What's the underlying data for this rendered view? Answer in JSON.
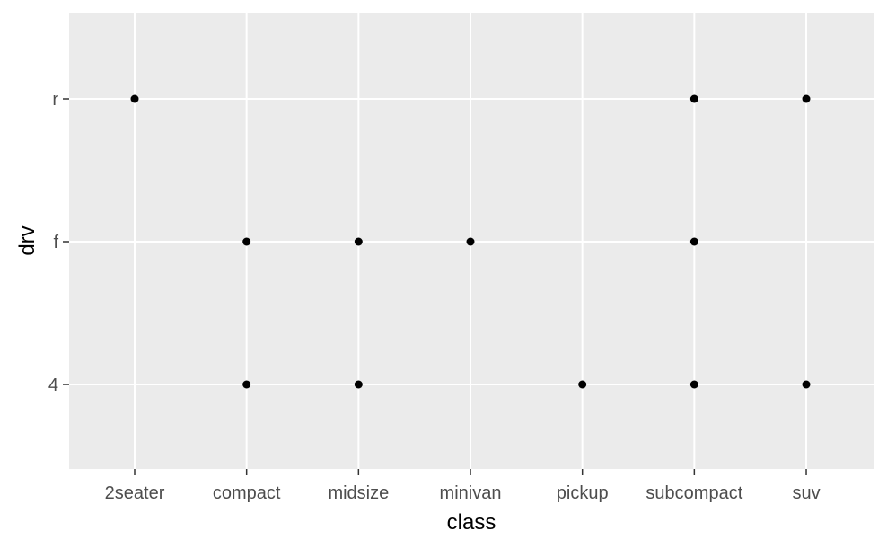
{
  "chart_data": {
    "type": "scatter",
    "title": "",
    "xlabel": "class",
    "ylabel": "drv",
    "x_categories": [
      "2seater",
      "compact",
      "midsize",
      "minivan",
      "pickup",
      "subcompact",
      "suv"
    ],
    "y_categories": [
      "4",
      "f",
      "r"
    ],
    "points": [
      {
        "x": "2seater",
        "y": "r"
      },
      {
        "x": "compact",
        "y": "f"
      },
      {
        "x": "compact",
        "y": "4"
      },
      {
        "x": "midsize",
        "y": "f"
      },
      {
        "x": "midsize",
        "y": "4"
      },
      {
        "x": "minivan",
        "y": "f"
      },
      {
        "x": "pickup",
        "y": "4"
      },
      {
        "x": "subcompact",
        "y": "r"
      },
      {
        "x": "subcompact",
        "y": "f"
      },
      {
        "x": "subcompact",
        "y": "4"
      },
      {
        "x": "suv",
        "y": "r"
      },
      {
        "x": "suv",
        "y": "4"
      }
    ],
    "grid": true,
    "legend": "none",
    "colors": {
      "panel": "#ebebeb",
      "gridline": "#ffffff",
      "point": "#000000",
      "tick": "#333333",
      "tick_label": "#4d4d4d"
    }
  }
}
